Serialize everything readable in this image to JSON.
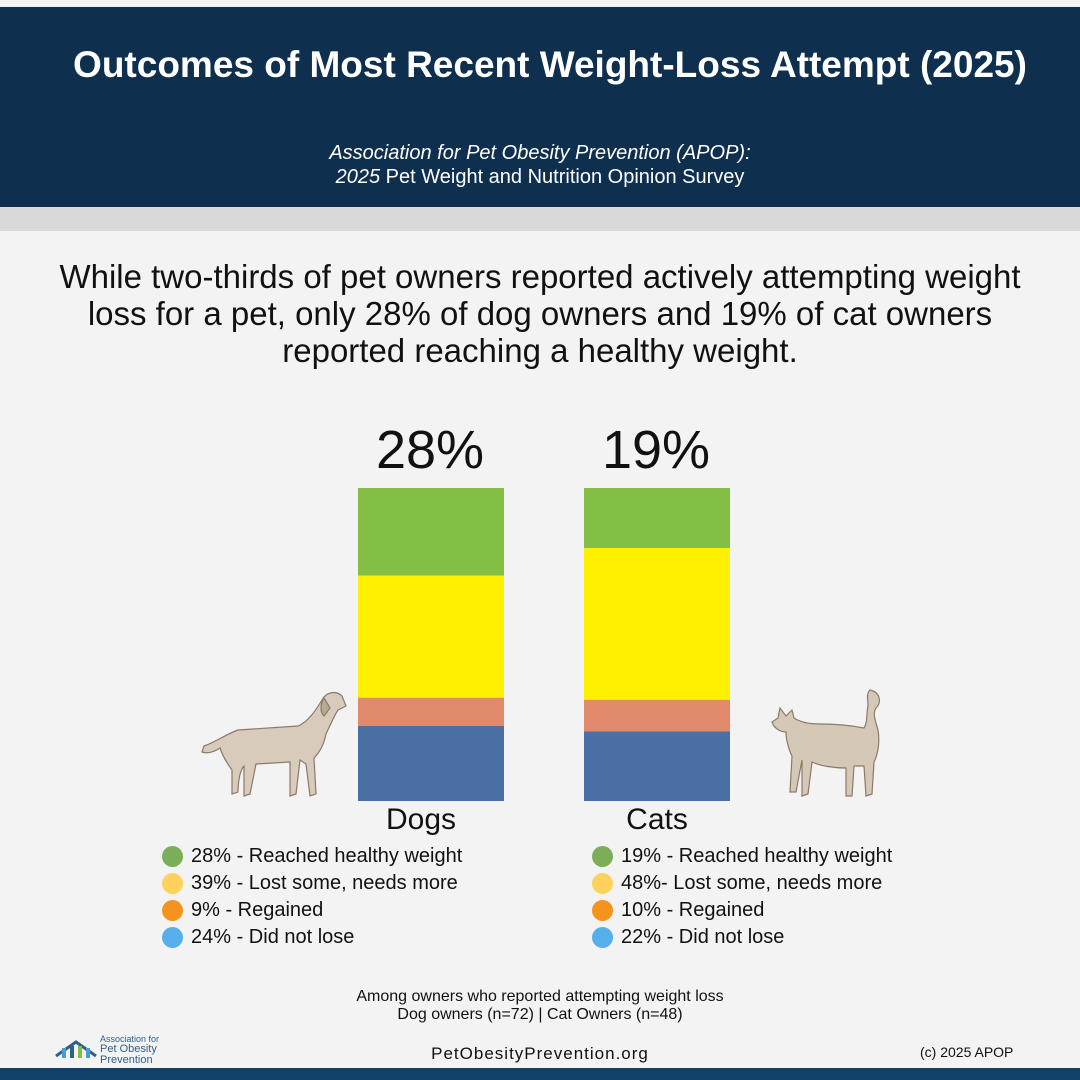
{
  "header": {
    "title": "Outcomes of Most Recent Weight-Loss Attempt (2025)",
    "subtitle_line1": "Association for Pet Obesity Prevention (APOP):",
    "subtitle_year": "2025",
    "subtitle_line2_rest": " Pet Weight and Nutrition Opinion Survey"
  },
  "headline": "While two-thirds of pet owners reported actively attempting weight loss for a pet, only 28% of dog owners and 19% of cat owners reported reaching a healthy weight.",
  "chart_data": {
    "type": "bar",
    "stacked": true,
    "categories": [
      "Dogs",
      "Cats"
    ],
    "top_labels": [
      "28%",
      "19%"
    ],
    "series": [
      {
        "name": "Reached healthy weight",
        "values": [
          28,
          19
        ],
        "bar_color": "#83bf44",
        "legend_color": "#7cae5a"
      },
      {
        "name": "Lost some, needs more",
        "values": [
          39,
          48
        ],
        "bar_color": "#fff000",
        "legend_color": "#ffd25e"
      },
      {
        "name": "Regained",
        "values": [
          9,
          10
        ],
        "bar_color": "#e0896b",
        "legend_color": "#f6921e"
      },
      {
        "name": "Did not lose",
        "values": [
          24,
          22
        ],
        "bar_color": "#4a6fa5",
        "legend_color": "#56aeea"
      }
    ],
    "ylim": [
      0,
      100
    ]
  },
  "legend": {
    "dogs": [
      "28% - Reached healthy weight",
      "39% - Lost some, needs more",
      "9% - Regained",
      "24% - Did not lose"
    ],
    "cats": [
      "19% - Reached healthy weight",
      "48%- Lost some, needs more",
      "10% - Regained",
      "22% - Did not lose"
    ]
  },
  "footer": {
    "note_line1": "Among owners who reported attempting weight loss",
    "note_line2": "Dog owners (n=72) | Cat Owners (n=48)",
    "website": "PetObesityPrevention.org",
    "copyright": "(c) 2025 APOP",
    "logo_line1": "Association for",
    "logo_line2": "Pet Obesity",
    "logo_line3": "Prevention"
  }
}
